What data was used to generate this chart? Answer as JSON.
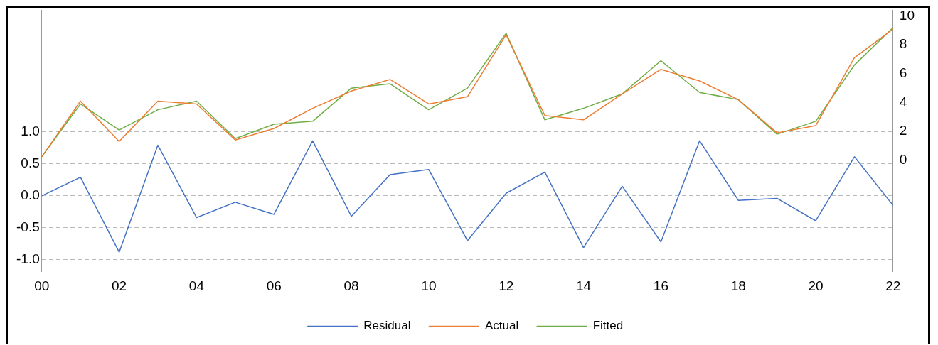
{
  "chart_data": {
    "type": "line",
    "categories": [
      "00",
      null,
      "02",
      null,
      "04",
      null,
      "06",
      null,
      "08",
      null,
      "10",
      null,
      "12",
      null,
      "14",
      null,
      "16",
      null,
      "18",
      null,
      "20",
      null,
      "22"
    ],
    "series": [
      {
        "name": "Residual",
        "color": "#4472c4",
        "values": [
          0.0,
          0.29,
          -0.88,
          0.79,
          -0.34,
          -0.1,
          -0.29,
          0.86,
          -0.32,
          0.33,
          0.41,
          -0.7,
          0.04,
          0.37,
          -0.81,
          0.15,
          -0.72,
          0.86,
          -0.07,
          -0.04,
          -0.39,
          0.61,
          -0.15
        ]
      },
      {
        "name": "Actual",
        "color": "#ed7d31",
        "axis": "y2",
        "values": [
          0.24,
          4.1,
          1.3,
          4.1,
          3.9,
          1.4,
          2.2,
          3.6,
          4.8,
          5.6,
          3.9,
          4.4,
          8.7,
          3.1,
          2.8,
          4.6,
          6.3,
          5.5,
          4.2,
          1.9,
          2.4,
          7.1,
          9.1
        ]
      },
      {
        "name": "Fitted",
        "color": "#70ad47",
        "axis": "y2",
        "values": [
          0.24,
          3.9,
          2.1,
          3.5,
          4.1,
          1.5,
          2.5,
          2.7,
          5.0,
          5.3,
          3.5,
          5.0,
          8.8,
          2.8,
          3.6,
          4.6,
          6.9,
          4.7,
          4.2,
          1.8,
          2.7,
          6.6,
          9.2
        ]
      }
    ],
    "ylim": [
      -1.18,
      2.9
    ],
    "yticks": [
      {
        "value": -1,
        "label": "-1.0"
      },
      {
        "value": -0.5,
        "label": "-0.5"
      },
      {
        "value": 0,
        "label": "0.0"
      },
      {
        "value": 0.5,
        "label": "0.5"
      },
      {
        "value": 1,
        "label": "1.0"
      }
    ],
    "y2lim": [
      -7.7,
      10.4
    ],
    "y2ticks": [
      0,
      2,
      4,
      6,
      8,
      10
    ],
    "grid": "y",
    "legend": "bottom",
    "marker": "none",
    "line_style": "solid"
  }
}
